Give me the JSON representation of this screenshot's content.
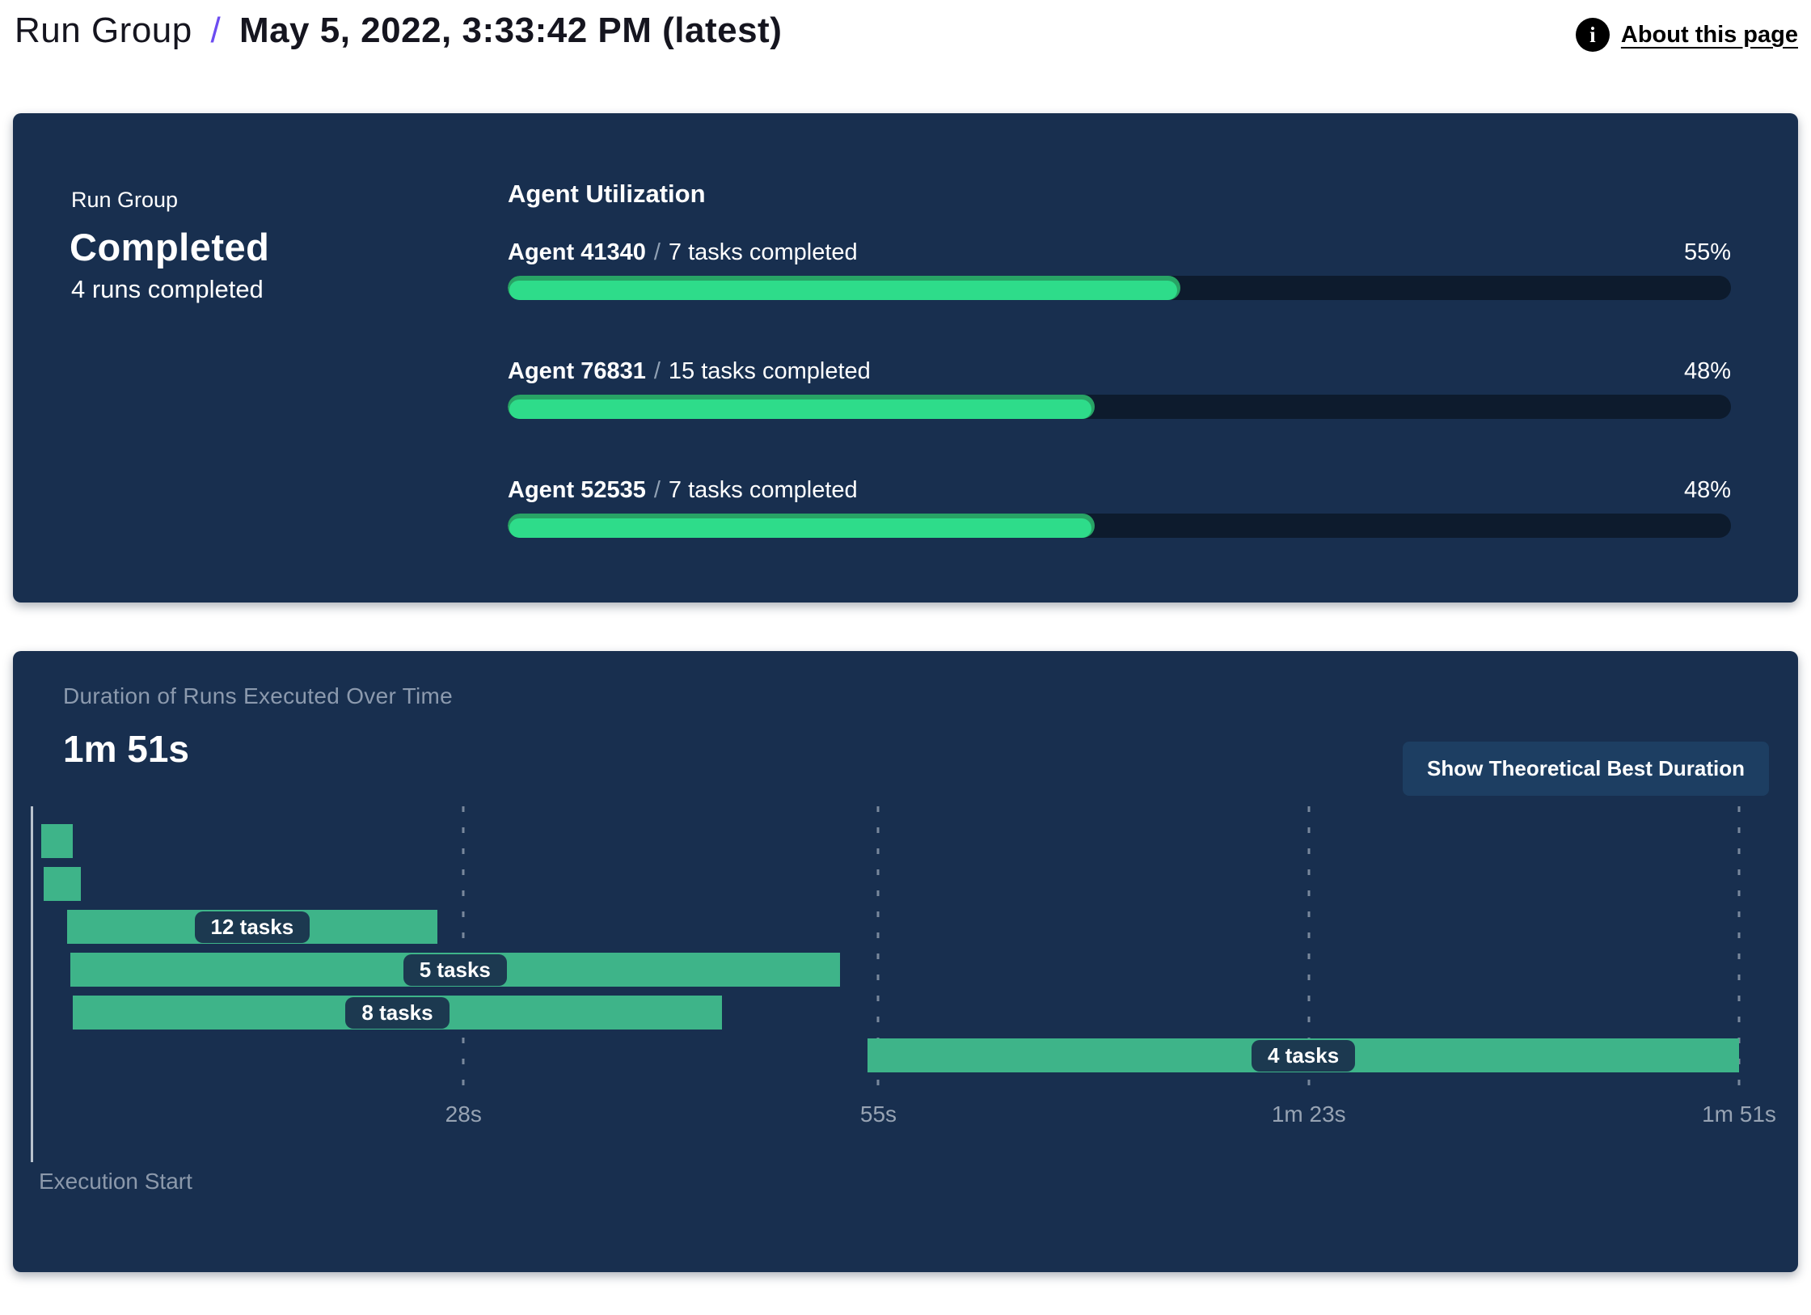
{
  "header": {
    "breadcrumb_root": "Run Group",
    "breadcrumb_separator": "/",
    "title": "May 5, 2022, 3:33:42 PM (latest)",
    "about_link": "About this page",
    "accent_color": "#6C4CF1"
  },
  "summary": {
    "label": "Run Group",
    "status": "Completed",
    "detail": "4 runs completed"
  },
  "agent_utilization": {
    "heading": "Agent Utilization",
    "separator": "/",
    "agents": [
      {
        "name": "Agent 41340",
        "tasks": "7 tasks completed",
        "percent": "55%"
      },
      {
        "name": "Agent 76831",
        "tasks": "15 tasks completed",
        "percent": "48%"
      },
      {
        "name": "Agent 52535",
        "tasks": "7 tasks completed",
        "percent": "48%"
      }
    ]
  },
  "duration_panel": {
    "title": "Duration of Runs Executed Over Time",
    "total_duration": "1m 51s",
    "button_label": "Show Theoretical Best Duration",
    "axis_label": "Execution Start"
  },
  "chart_data": {
    "type": "gantt",
    "title": "Duration of Runs Executed Over Time",
    "time_unit": "seconds",
    "x_min": 0,
    "x_max": 111,
    "axis_ticks": [
      {
        "seconds": 28,
        "label": "28s"
      },
      {
        "seconds": 55,
        "label": "55s"
      },
      {
        "seconds": 83,
        "label": "1m 23s"
      },
      {
        "seconds": 111,
        "label": "1m 51s"
      }
    ],
    "runs": [
      {
        "start": 0.5,
        "end": 2.6,
        "label": ""
      },
      {
        "start": 0.7,
        "end": 3.1,
        "label": ""
      },
      {
        "start": 2.2,
        "end": 26.3,
        "label": "12 tasks"
      },
      {
        "start": 2.4,
        "end": 52.5,
        "label": "5 tasks"
      },
      {
        "start": 2.6,
        "end": 44.8,
        "label": "8 tasks"
      },
      {
        "start": 54.3,
        "end": 111,
        "label": "4 tasks"
      }
    ],
    "colors": {
      "bar": "#3EB489",
      "label_pill": "#1C3950",
      "progress_fill": "#2EDC8A",
      "panel": "#182F4F"
    }
  }
}
